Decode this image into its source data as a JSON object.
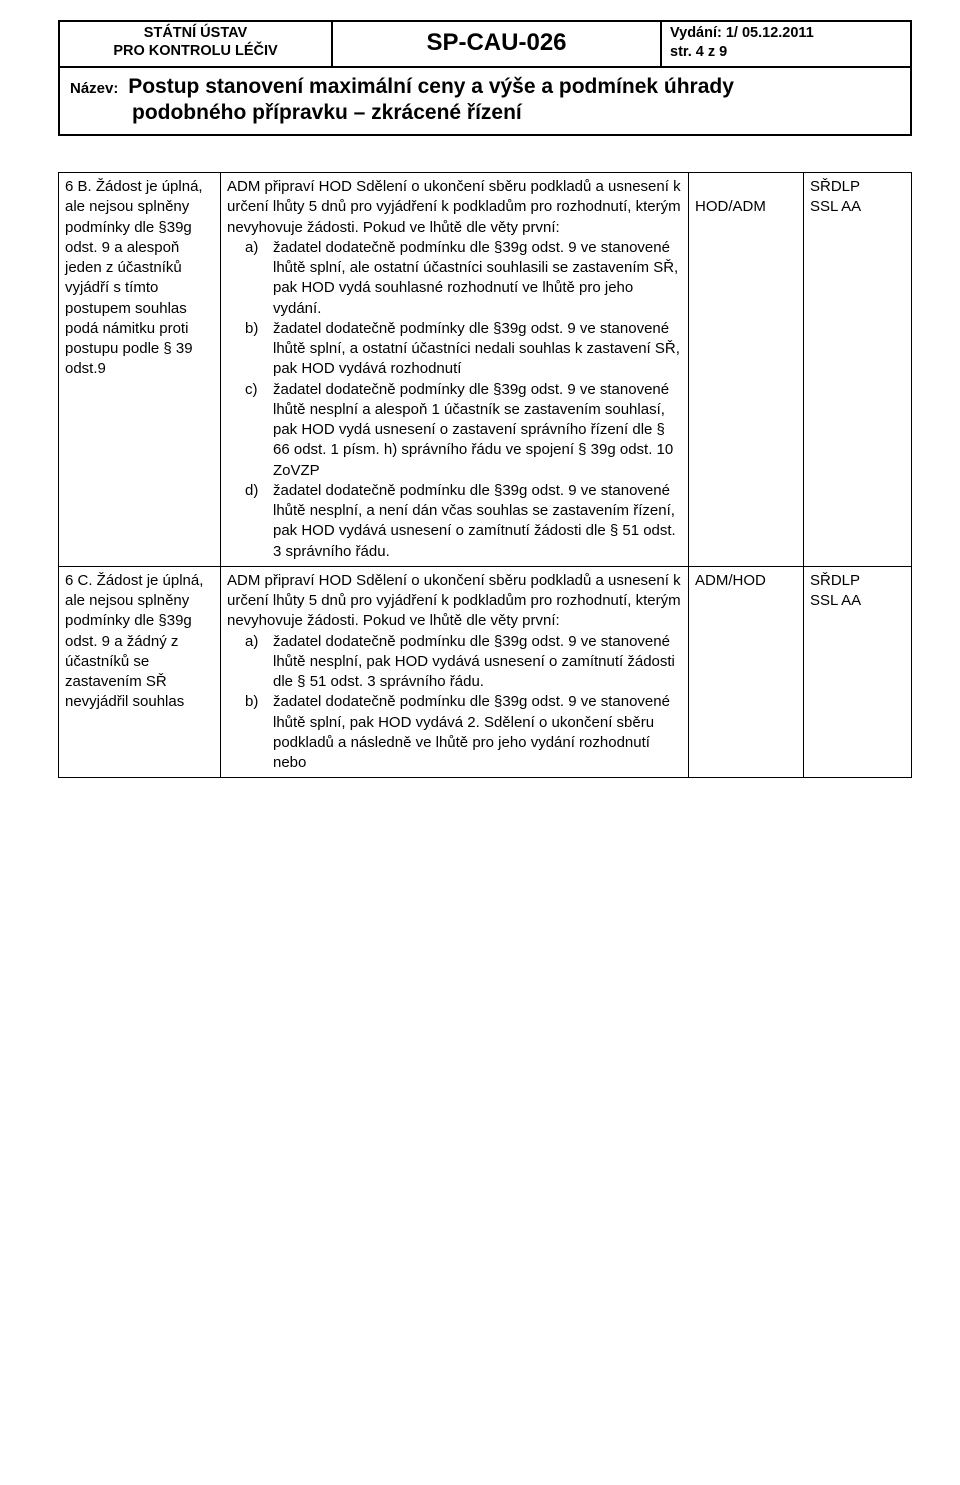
{
  "header": {
    "org_line1": "STÁTNÍ ÚSTAV",
    "org_line2": "PRO KONTROLU LÉČIV",
    "code": "SP-CAU-026",
    "issue": "Vydání: 1/ 05.12.2011",
    "page": "str.  4  z  9",
    "title_label": "Název:",
    "title_line1": "Postup stanovení maximální ceny a výše a podmínek úhrady",
    "title_line2": "podobného přípravku – zkrácené řízení"
  },
  "rows": [
    {
      "c0": "6 B. Žádost je úplná, ale nejsou splněny podmínky dle §39g odst. 9 a alespoň jeden z účastníků vyjádří s tímto postupem souhlas podá námitku proti postupu podle § 39 odst.9",
      "c1_intro": "ADM připraví HOD Sdělení o ukončení sběru podkladů a usnesení k určení lhůty 5 dnů pro vyjádření k podkladům pro rozhodnutí, kterým nevyhovuje žádosti. Pokud ve lhůtě dle věty první:",
      "c1_list": [
        {
          "marker": "a)",
          "text": "žadatel dodatečně podmínku dle §39g odst. 9 ve stanovené lhůtě splní, ale ostatní účastníci souhlasili se zastavením SŘ, pak HOD vydá souhlasné rozhodnutí ve lhůtě pro jeho vydání."
        },
        {
          "marker": "b)",
          "text": "žadatel dodatečně podmínky dle §39g odst. 9 ve stanovené lhůtě splní, a ostatní účastníci nedali souhlas k zastavení SŘ, pak HOD vydává rozhodnutí"
        },
        {
          "marker": "c)",
          "text": "žadatel dodatečně podmínky dle §39g odst. 9 ve stanovené lhůtě nesplní a alespoň 1 účastník se zastavením souhlasí, pak HOD vydá usnesení o zastavení správního řízení dle § 66 odst. 1 písm. h) správního řádu ve spojení § 39g odst. 10 ZoVZP"
        },
        {
          "marker": "d)",
          "text": "žadatel dodatečně podmínku dle §39g odst. 9 ve stanovené lhůtě nesplní, a není dán včas souhlas se zastavením řízení, pak HOD vydává usnesení o zamítnutí žádosti dle § 51 odst. 3 správního řádu."
        }
      ],
      "c2": "HOD/ADM",
      "c3_l1": "SŘDLP",
      "c3_l2": "SSL AA"
    },
    {
      "c0": "6 C. Žádost je úplná, ale nejsou splněny podmínky dle §39g odst. 9 a žádný z účastníků se zastavením SŘ nevyjádřil souhlas",
      "c1_intro": "ADM připraví HOD Sdělení o ukončení sběru podkladů a usnesení k určení lhůty 5 dnů pro vyjádření k podkladům pro rozhodnutí, kterým nevyhovuje žádosti. Pokud ve lhůtě dle věty první:",
      "c1_list": [
        {
          "marker": "a)",
          "text": "žadatel dodatečně podmínku dle §39g odst. 9 ve stanovené lhůtě nesplní, pak HOD vydává usnesení o zamítnutí žádosti dle § 51 odst. 3 správního řádu."
        },
        {
          "marker": "b)",
          "text": "žadatel dodatečně podmínku dle §39g odst. 9 ve stanovené lhůtě splní, pak HOD vydává 2. Sdělení o ukončení sběru podkladů a následně ve lhůtě pro jeho vydání rozhodnutí nebo"
        }
      ],
      "c2": "ADM/HOD",
      "c3_l1": "SŘDLP",
      "c3_l2": "SSL AA"
    }
  ]
}
